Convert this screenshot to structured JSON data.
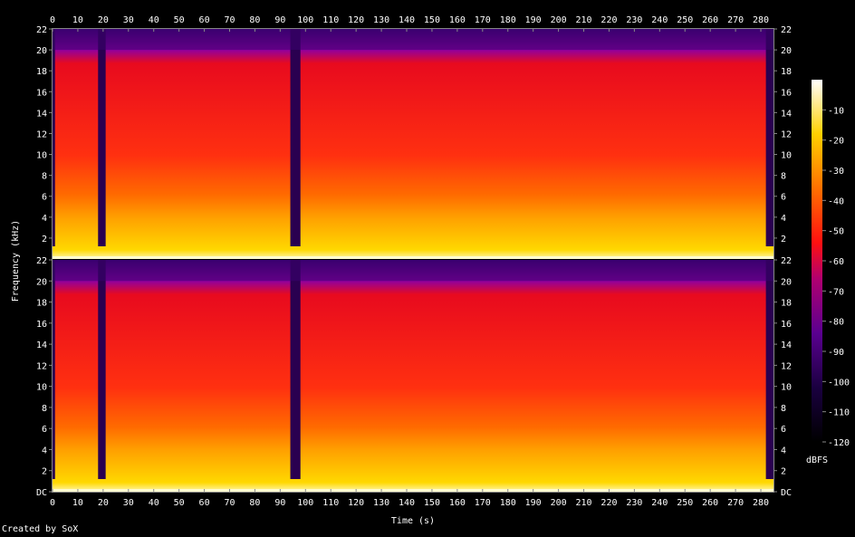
{
  "chart_data": {
    "type": "heatmap",
    "title": "",
    "xlabel": "Time (s)",
    "ylabel": "Frequency (kHz)",
    "x_range": [
      0,
      285
    ],
    "x_ticks": [
      0,
      10,
      20,
      30,
      40,
      50,
      60,
      70,
      80,
      90,
      100,
      110,
      120,
      130,
      140,
      150,
      160,
      170,
      180,
      190,
      200,
      210,
      220,
      230,
      240,
      250,
      260,
      270,
      280
    ],
    "y_range_khz": [
      0,
      22
    ],
    "y_ticks": [
      "DC",
      "2",
      "4",
      "6",
      "8",
      "10",
      "12",
      "14",
      "16",
      "18",
      "20",
      "22"
    ],
    "channels": 2,
    "colorbar": {
      "label": "dBFS",
      "range": [
        -120,
        0
      ],
      "ticks": [
        "-10",
        "-20",
        "-30",
        "-40",
        "-50",
        "-60",
        "-70",
        "-80",
        "-90",
        "-100",
        "-110",
        "-120"
      ],
      "colors": [
        "#000000",
        "#2a0050",
        "#6a00a0",
        "#c0003c",
        "#ff2020",
        "#ff8a00",
        "#ffd000",
        "#ffffff"
      ]
    },
    "quiet_segments_s": [
      [
        0,
        1
      ],
      [
        18,
        21
      ],
      [
        94,
        98
      ],
      [
        282,
        285
      ]
    ],
    "bandwidth_cutoff_khz": 20
  },
  "footer": {
    "credit": "Created by SoX"
  }
}
